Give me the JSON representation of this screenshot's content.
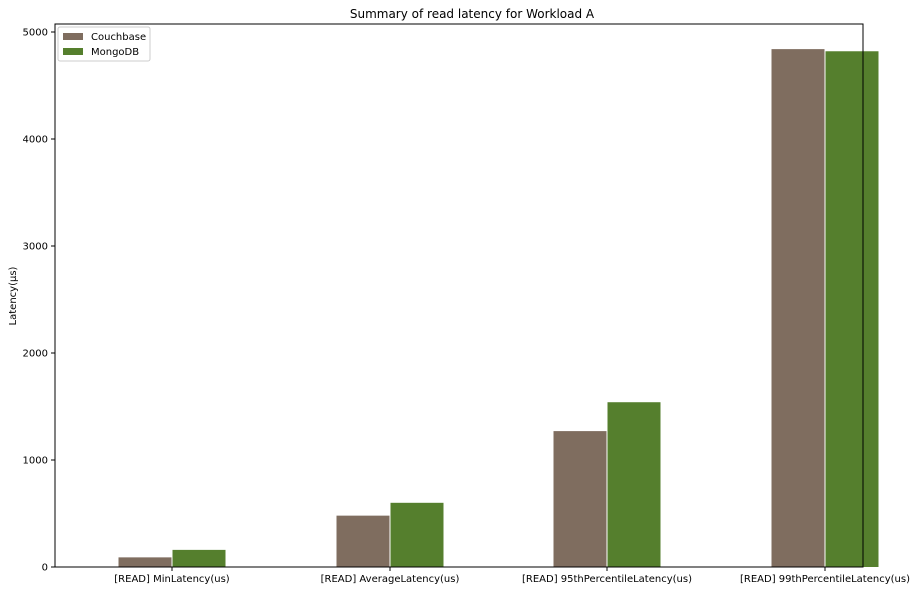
{
  "chart_data": {
    "type": "bar",
    "title": "Summary of read latency for Workload A",
    "xlabel": "",
    "ylabel": "Latency(µs)",
    "ylim": [
      0,
      5000
    ],
    "yticks": [
      0,
      1000,
      2000,
      3000,
      4000,
      5000
    ],
    "categories": [
      "[READ] MinLatency(us)",
      "[READ] AverageLatency(us)",
      "[READ] 95thPercentileLatency(us)",
      "[READ] 99thPercentileLatency(us)"
    ],
    "series": [
      {
        "name": "Couchbase",
        "color": "#7f6d5f",
        "values": [
          90,
          480,
          1270,
          4840
        ]
      },
      {
        "name": "MongoDB",
        "color": "#557f2d",
        "values": [
          160,
          600,
          1540,
          4820
        ]
      }
    ],
    "legend_position": "top-left",
    "grid": false
  }
}
